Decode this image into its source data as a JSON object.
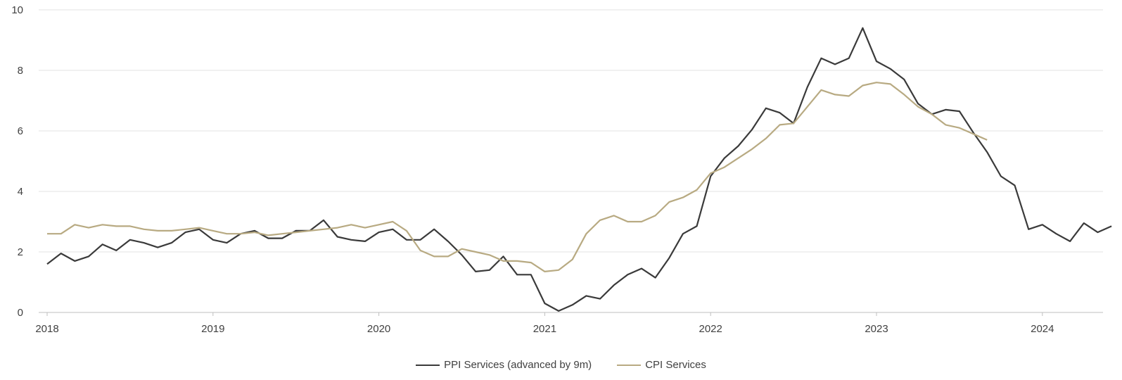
{
  "chart_data": {
    "type": "line",
    "title": "",
    "xlabel": "",
    "ylabel": "",
    "ylim": [
      0,
      10
    ],
    "yticks": [
      "0",
      "2",
      "4",
      "6",
      "8",
      "10"
    ],
    "xticks": [
      "2018",
      "2019",
      "2020",
      "2021",
      "2022",
      "2023",
      "2024"
    ],
    "grid": "horizontal",
    "legend_position": "bottom",
    "series": [
      {
        "name": "PPI Services (advanced by 9m)",
        "color": "#3a3a3a",
        "start": "2018-01",
        "values": [
          1.6,
          1.95,
          1.7,
          1.85,
          2.25,
          2.05,
          2.4,
          2.3,
          2.15,
          2.3,
          2.65,
          2.75,
          2.4,
          2.3,
          2.6,
          2.7,
          2.45,
          2.45,
          2.7,
          2.7,
          3.05,
          2.5,
          2.4,
          2.35,
          2.65,
          2.75,
          2.4,
          2.4,
          2.75,
          2.35,
          1.9,
          1.35,
          1.4,
          1.85,
          1.25,
          1.25,
          0.3,
          0.05,
          0.25,
          0.55,
          0.45,
          0.9,
          1.25,
          1.45,
          1.15,
          1.8,
          2.6,
          2.85,
          4.5,
          5.1,
          5.5,
          6.05,
          6.75,
          6.6,
          6.25,
          7.45,
          8.4,
          8.2,
          8.4,
          9.4,
          8.3,
          8.05,
          7.7,
          6.9,
          6.55,
          6.7,
          6.65,
          5.95,
          5.3,
          4.5,
          4.2,
          2.75,
          2.9,
          2.6,
          2.35,
          2.95,
          2.65,
          2.85
        ]
      },
      {
        "name": "CPI Services",
        "color": "#b8aa82",
        "start": "2018-01",
        "values": [
          2.6,
          2.6,
          2.9,
          2.8,
          2.9,
          2.85,
          2.85,
          2.75,
          2.7,
          2.7,
          2.75,
          2.8,
          2.7,
          2.6,
          2.6,
          2.65,
          2.55,
          2.6,
          2.65,
          2.7,
          2.75,
          2.8,
          2.9,
          2.8,
          2.9,
          3.0,
          2.7,
          2.05,
          1.85,
          1.85,
          2.1,
          2.0,
          1.9,
          1.7,
          1.7,
          1.65,
          1.35,
          1.4,
          1.75,
          2.6,
          3.05,
          3.2,
          3.0,
          3.0,
          3.2,
          3.65,
          3.8,
          4.05,
          4.6,
          4.8,
          5.1,
          5.4,
          5.75,
          6.2,
          6.25,
          6.8,
          7.35,
          7.2,
          7.15,
          7.5,
          7.6,
          7.55,
          7.2,
          6.8,
          6.55,
          6.2,
          6.1,
          5.9,
          5.7
        ]
      }
    ]
  }
}
